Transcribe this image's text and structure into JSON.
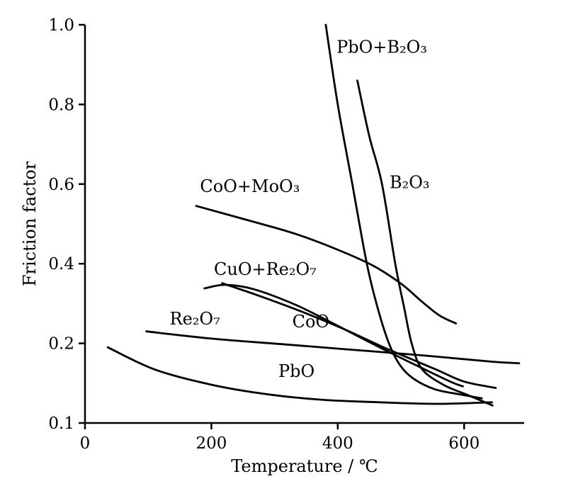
{
  "chart_data": {
    "type": "line",
    "title": "",
    "xlabel": "Temperature / ℃",
    "ylabel": "Friction factor",
    "x_domain": [
      0,
      695
    ],
    "x_ticks": [
      0,
      200,
      400,
      600
    ],
    "y_ticks": [
      0.1,
      0.2,
      0.4,
      0.6,
      0.8,
      1.0
    ],
    "y_tick_labels": [
      "0.1",
      "0.2",
      "0.4",
      "0.6",
      "0.8",
      "1.0"
    ],
    "y_scale_note": "tick marks evenly spaced (0.1-0.2 segment stretched)",
    "grid": false,
    "legend": "inline curve labels",
    "line_color": "#000000",
    "series": [
      {
        "name": "PbO+B₂O₃",
        "points": [
          [
            381,
            1.0
          ],
          [
            400,
            0.8
          ],
          [
            423,
            0.6
          ],
          [
            446,
            0.4
          ],
          [
            463,
            0.29
          ],
          [
            481,
            0.2
          ],
          [
            499,
            0.172
          ],
          [
            521,
            0.155
          ],
          [
            555,
            0.142
          ],
          [
            600,
            0.135
          ],
          [
            628,
            0.131
          ]
        ]
      },
      {
        "name": "B₂O₃",
        "points": [
          [
            431,
            0.86
          ],
          [
            450,
            0.72
          ],
          [
            470,
            0.6
          ],
          [
            491,
            0.4
          ],
          [
            505,
            0.29
          ],
          [
            517,
            0.2
          ],
          [
            533,
            0.168
          ],
          [
            567,
            0.148
          ],
          [
            606,
            0.135
          ],
          [
            645,
            0.122
          ]
        ]
      },
      {
        "name": "CoO+MoO₃",
        "points": [
          [
            176,
            0.545
          ],
          [
            256,
            0.51
          ],
          [
            333,
            0.475
          ],
          [
            400,
            0.435
          ],
          [
            456,
            0.395
          ],
          [
            500,
            0.35
          ],
          [
            533,
            0.305
          ],
          [
            561,
            0.27
          ],
          [
            587,
            0.25
          ]
        ]
      },
      {
        "name": "CuO+Re₂O₇",
        "points": [
          [
            189,
            0.338
          ],
          [
            222,
            0.347
          ],
          [
            267,
            0.336
          ],
          [
            333,
            0.297
          ],
          [
            389,
            0.253
          ],
          [
            444,
            0.208
          ],
          [
            489,
            0.186
          ],
          [
            533,
            0.169
          ],
          [
            578,
            0.152
          ],
          [
            598,
            0.146
          ]
        ]
      },
      {
        "name": "Re₂O₇",
        "points": [
          [
            97,
            0.23
          ],
          [
            200,
            0.212
          ],
          [
            311,
            0.199
          ],
          [
            422,
            0.192
          ],
          [
            533,
            0.185
          ],
          [
            644,
            0.177
          ],
          [
            687,
            0.175
          ]
        ]
      },
      {
        "name": "CoO",
        "points": [
          [
            217,
            0.351
          ],
          [
            278,
            0.318
          ],
          [
            344,
            0.279
          ],
          [
            411,
            0.235
          ],
          [
            467,
            0.197
          ],
          [
            511,
            0.182
          ],
          [
            556,
            0.167
          ],
          [
            600,
            0.152
          ],
          [
            650,
            0.144
          ]
        ]
      },
      {
        "name": "PbO",
        "points": [
          [
            36,
            0.195
          ],
          [
            111,
            0.167
          ],
          [
            200,
            0.148
          ],
          [
            289,
            0.136
          ],
          [
            378,
            0.129
          ],
          [
            467,
            0.126
          ],
          [
            556,
            0.124
          ],
          [
            644,
            0.126
          ]
        ]
      }
    ],
    "annotations": [
      {
        "text": "PbO+B₂O₃",
        "x": 398,
        "y": 0.93
      },
      {
        "text": "B₂O₃",
        "x": 482,
        "y": 0.59
      },
      {
        "text": "CoO+MoO₃",
        "x": 182,
        "y": 0.58
      },
      {
        "text": "CuO+Re₂O₇",
        "x": 204,
        "y": 0.372
      },
      {
        "text": "Re₂O₇",
        "x": 134,
        "y": 0.247
      },
      {
        "text": "CoO",
        "x": 328,
        "y": 0.24
      },
      {
        "text": "PbO",
        "x": 306,
        "y": 0.158
      }
    ]
  }
}
